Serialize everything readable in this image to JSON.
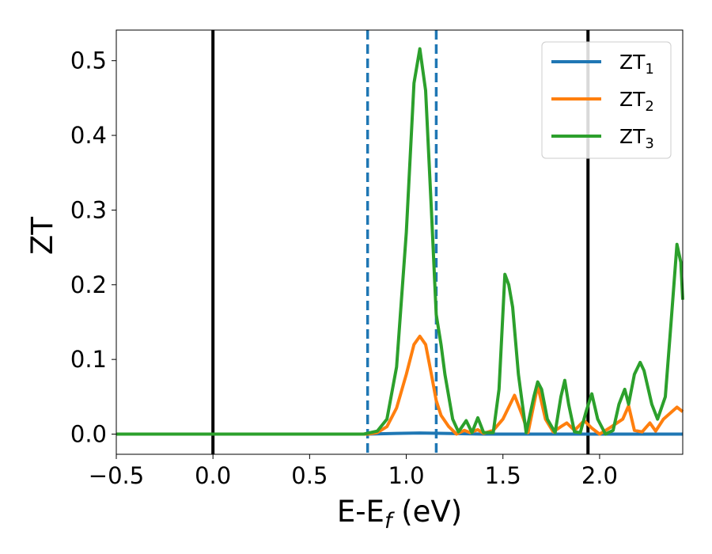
{
  "chart_data": {
    "type": "line",
    "title": "",
    "xlabel": "E-E",
    "xlabel_sub": "f",
    "xlabel_unit": " (eV)",
    "ylabel": "ZT",
    "xlim": [
      -0.5,
      2.43
    ],
    "ylim": [
      -0.027,
      0.541
    ],
    "xticks": [
      -0.5,
      0.0,
      0.5,
      1.0,
      1.5,
      2.0
    ],
    "xtick_labels": [
      "−0.5",
      "0.0",
      "0.5",
      "1.0",
      "1.5",
      "2.0"
    ],
    "yticks": [
      0.0,
      0.1,
      0.2,
      0.3,
      0.4,
      0.5
    ],
    "ytick_labels": [
      "0.0",
      "0.1",
      "0.2",
      "0.3",
      "0.4",
      "0.5"
    ],
    "grid": false,
    "legend_position": "top-right",
    "vertical_lines": [
      {
        "x": 0.0,
        "style": "solid",
        "color": "#000000"
      },
      {
        "x": 1.94,
        "style": "solid",
        "color": "#000000"
      },
      {
        "x": 0.8,
        "style": "dashed",
        "color": "#1f77b4"
      },
      {
        "x": 1.155,
        "style": "dashed",
        "color": "#1f77b4"
      }
    ],
    "series": [
      {
        "name": "ZT",
        "sub": "1",
        "color": "#1f77b4",
        "points": [
          [
            -0.5,
            0.0
          ],
          [
            0.8,
            0.0
          ],
          [
            0.95,
            0.001
          ],
          [
            1.07,
            0.0015
          ],
          [
            1.2,
            0.001
          ],
          [
            1.4,
            0.0
          ],
          [
            2.43,
            0.0
          ]
        ]
      },
      {
        "name": "ZT",
        "sub": "2",
        "color": "#ff7f0e",
        "points": [
          [
            -0.5,
            0.0
          ],
          [
            0.8,
            0.0
          ],
          [
            0.85,
            0.002
          ],
          [
            0.9,
            0.01
          ],
          [
            0.95,
            0.035
          ],
          [
            1.0,
            0.08
          ],
          [
            1.04,
            0.12
          ],
          [
            1.07,
            0.131
          ],
          [
            1.1,
            0.12
          ],
          [
            1.13,
            0.08
          ],
          [
            1.155,
            0.045
          ],
          [
            1.18,
            0.025
          ],
          [
            1.22,
            0.01
          ],
          [
            1.26,
            0.0
          ],
          [
            1.3,
            0.005
          ],
          [
            1.33,
            0.002
          ],
          [
            1.37,
            0.006
          ],
          [
            1.4,
            0.001
          ],
          [
            1.45,
            0.005
          ],
          [
            1.5,
            0.02
          ],
          [
            1.56,
            0.052
          ],
          [
            1.6,
            0.025
          ],
          [
            1.63,
            0.002
          ],
          [
            1.68,
            0.065
          ],
          [
            1.72,
            0.02
          ],
          [
            1.76,
            0.003
          ],
          [
            1.8,
            0.01
          ],
          [
            1.83,
            0.015
          ],
          [
            1.87,
            0.005
          ],
          [
            1.92,
            0.018
          ],
          [
            1.96,
            0.008
          ],
          [
            2.0,
            0.0
          ],
          [
            2.05,
            0.008
          ],
          [
            2.12,
            0.02
          ],
          [
            2.15,
            0.038
          ],
          [
            2.18,
            0.005
          ],
          [
            2.22,
            0.003
          ],
          [
            2.26,
            0.015
          ],
          [
            2.29,
            0.004
          ],
          [
            2.33,
            0.02
          ],
          [
            2.4,
            0.036
          ],
          [
            2.43,
            0.03
          ]
        ]
      },
      {
        "name": "ZT",
        "sub": "3",
        "color": "#2ca02c",
        "points": [
          [
            -0.5,
            0.0
          ],
          [
            0.78,
            0.0
          ],
          [
            0.85,
            0.004
          ],
          [
            0.9,
            0.02
          ],
          [
            0.95,
            0.09
          ],
          [
            1.0,
            0.27
          ],
          [
            1.04,
            0.47
          ],
          [
            1.07,
            0.516
          ],
          [
            1.1,
            0.46
          ],
          [
            1.13,
            0.3
          ],
          [
            1.155,
            0.16
          ],
          [
            1.18,
            0.12
          ],
          [
            1.2,
            0.08
          ],
          [
            1.24,
            0.02
          ],
          [
            1.27,
            0.003
          ],
          [
            1.31,
            0.018
          ],
          [
            1.34,
            0.002
          ],
          [
            1.37,
            0.022
          ],
          [
            1.4,
            0.002
          ],
          [
            1.45,
            0.002
          ],
          [
            1.48,
            0.06
          ],
          [
            1.51,
            0.214
          ],
          [
            1.53,
            0.2
          ],
          [
            1.55,
            0.17
          ],
          [
            1.58,
            0.08
          ],
          [
            1.62,
            0.002
          ],
          [
            1.66,
            0.05
          ],
          [
            1.68,
            0.07
          ],
          [
            1.7,
            0.06
          ],
          [
            1.73,
            0.02
          ],
          [
            1.77,
            0.002
          ],
          [
            1.8,
            0.05
          ],
          [
            1.82,
            0.072
          ],
          [
            1.84,
            0.04
          ],
          [
            1.87,
            0.003
          ],
          [
            1.9,
            0.002
          ],
          [
            1.93,
            0.03
          ],
          [
            1.96,
            0.054
          ],
          [
            1.99,
            0.02
          ],
          [
            2.03,
            0.0
          ],
          [
            2.07,
            0.005
          ],
          [
            2.1,
            0.04
          ],
          [
            2.13,
            0.06
          ],
          [
            2.15,
            0.04
          ],
          [
            2.18,
            0.08
          ],
          [
            2.21,
            0.096
          ],
          [
            2.23,
            0.085
          ],
          [
            2.27,
            0.04
          ],
          [
            2.3,
            0.02
          ],
          [
            2.34,
            0.05
          ],
          [
            2.37,
            0.15
          ],
          [
            2.4,
            0.254
          ],
          [
            2.42,
            0.23
          ],
          [
            2.43,
            0.18
          ]
        ]
      }
    ]
  }
}
